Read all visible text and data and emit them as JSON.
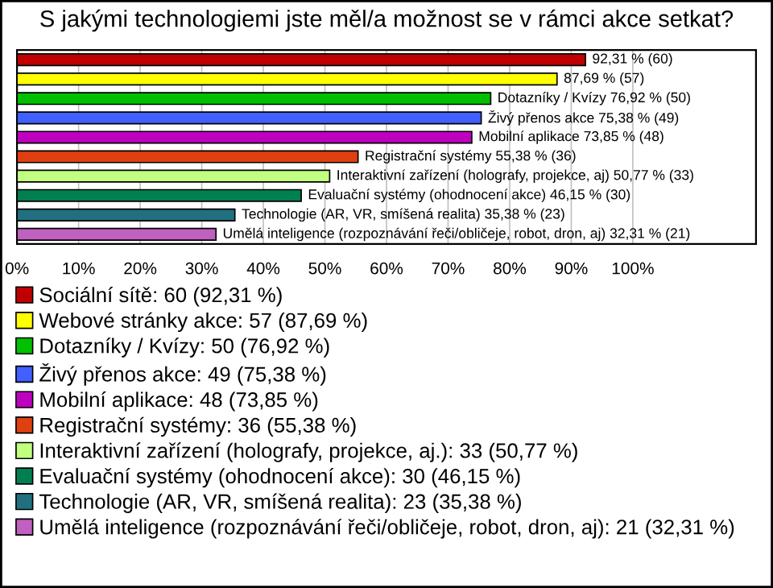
{
  "chart_data": {
    "type": "bar",
    "orientation": "horizontal",
    "title": "S jakými technologiemi jste měl/a možnost se v rámci akce setkat?",
    "categories": [
      null,
      null,
      null,
      null,
      null,
      null,
      null,
      null,
      null,
      null
    ],
    "xlim": [
      0,
      120
    ],
    "xticks": [
      {
        "value": 0,
        "label": "0%"
      },
      {
        "value": 10,
        "label": "10%"
      },
      {
        "value": 20,
        "label": "20%"
      },
      {
        "value": 30,
        "label": "30%"
      },
      {
        "value": 40,
        "label": "40%"
      },
      {
        "value": 50,
        "label": "50%"
      },
      {
        "value": 60,
        "label": "60%"
      },
      {
        "value": 70,
        "label": "70%"
      },
      {
        "value": 80,
        "label": "80%"
      },
      {
        "value": 90,
        "label": "90%"
      },
      {
        "value": 100,
        "label": "100%"
      }
    ],
    "grid": "x",
    "legend": "bottom",
    "series": [
      {
        "name": "Sociální sítě: 60 (92,31 %)",
        "color": "#c00000",
        "values": [
          92.31,
          null,
          null,
          null,
          null,
          null,
          null,
          null,
          null,
          null
        ],
        "value_labels": [
          "92,31 % (60)",
          null,
          null,
          null,
          null,
          null,
          null,
          null,
          null,
          null
        ]
      },
      {
        "name": "Webové stránky akce: 57 (87,69 %)",
        "color": "#ffff00",
        "values": [
          null,
          87.69,
          null,
          null,
          null,
          null,
          null,
          null,
          null,
          null
        ],
        "value_labels": [
          null,
          "87,69 % (57)",
          null,
          null,
          null,
          null,
          null,
          null,
          null,
          null
        ]
      },
      {
        "name": "Dotazníky / Kvízy: 50 (76,92 %)",
        "color": "#00c000",
        "values": [
          null,
          null,
          76.92,
          null,
          null,
          null,
          null,
          null,
          null,
          null
        ],
        "value_labels": [
          null,
          null,
          "Dotazníky / Kvízy 76,92 % (50)",
          null,
          null,
          null,
          null,
          null,
          null,
          null
        ]
      },
      {
        "name": "Živý přenos akce: 49 (75,38 %)",
        "color": "#4060ff",
        "values": [
          null,
          null,
          null,
          75.38,
          null,
          null,
          null,
          null,
          null,
          null
        ],
        "value_labels": [
          null,
          null,
          null,
          "Živý přenos akce 75,38 % (49)",
          null,
          null,
          null,
          null,
          null,
          null
        ]
      },
      {
        "name": "Mobilní aplikace: 48 (73,85 %)",
        "color": "#c000c0",
        "values": [
          null,
          null,
          null,
          null,
          73.85,
          null,
          null,
          null,
          null,
          null
        ],
        "value_labels": [
          null,
          null,
          null,
          null,
          "Mobilní aplikace 73,85 % (48)",
          null,
          null,
          null,
          null,
          null
        ]
      },
      {
        "name": "Registrační systémy: 36 (55,38 %)",
        "color": "#e04010",
        "values": [
          null,
          null,
          null,
          null,
          null,
          55.38,
          null,
          null,
          null,
          null
        ],
        "value_labels": [
          null,
          null,
          null,
          null,
          null,
          "Registrační systémy 55,38 % (36)",
          null,
          null,
          null,
          null
        ]
      },
      {
        "name": "Interaktivní zařízení (holografy, projekce, aj.): 33 (50,77 %)",
        "color": "#c0ff80",
        "values": [
          null,
          null,
          null,
          null,
          null,
          null,
          50.77,
          null,
          null,
          null
        ],
        "value_labels": [
          null,
          null,
          null,
          null,
          null,
          null,
          "Interaktivní zařízení (holografy, projekce, aj) 50,77 % (33)",
          null,
          null,
          null
        ]
      },
      {
        "name": "Evaluační systémy (ohodnocení akce): 30 (46,15 %)",
        "color": "#008050",
        "values": [
          null,
          null,
          null,
          null,
          null,
          null,
          null,
          46.15,
          null,
          null
        ],
        "value_labels": [
          null,
          null,
          null,
          null,
          null,
          null,
          null,
          "Evaluační systémy (ohodnocení akce) 46,15 % (30)",
          null,
          null
        ]
      },
      {
        "name": "Technologie (AR, VR, smíšená realita): 23 (35,38 %)",
        "color": "#207080",
        "values": [
          null,
          null,
          null,
          null,
          null,
          null,
          null,
          null,
          35.38,
          null
        ],
        "value_labels": [
          null,
          null,
          null,
          null,
          null,
          null,
          null,
          null,
          "Technologie (AR, VR, smíšená realita) 35,38 % (23)",
          null
        ]
      },
      {
        "name": "Umělá inteligence (rozpoznávání řeči/obličeje, robot, dron, aj): 21 (32,31 %)",
        "color": "#c060c0",
        "values": [
          null,
          null,
          null,
          null,
          null,
          null,
          null,
          null,
          null,
          32.31
        ],
        "value_labels": [
          null,
          null,
          null,
          null,
          null,
          null,
          null,
          null,
          null,
          "Umělá inteligence (rozpoznávání řeči/obličeje, robot, dron, aj) 32,31 % (21)"
        ]
      }
    ]
  }
}
